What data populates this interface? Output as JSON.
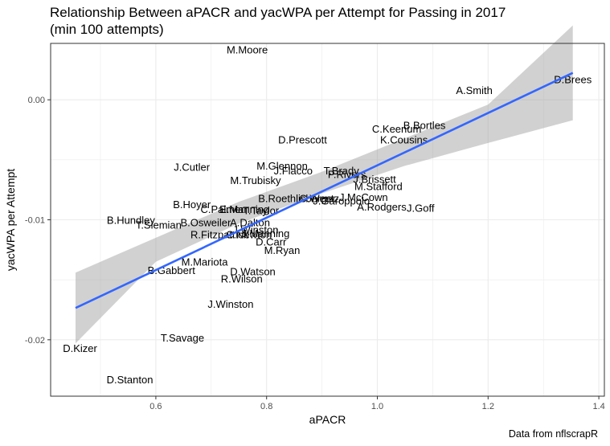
{
  "chart_data": {
    "type": "scatter",
    "title": "Relationship Between aPACR and yacWPA per Attempt for Passing in 2017\n(min 100 attempts)",
    "xlabel": "aPACR",
    "ylabel": "yacWPA per Attempt",
    "caption": "Data from nflscrapR",
    "xlim": [
      0.41,
      1.41
    ],
    "ylim": [
      -0.0247,
      0.0047
    ],
    "xticks": [
      0.6,
      0.8,
      1.0,
      1.2,
      1.4
    ],
    "xtick_labels": [
      "0.6",
      "0.8",
      "1.0",
      "1.2",
      "1.4"
    ],
    "yticks": [
      -0.02,
      -0.01,
      0.0
    ],
    "ytick_labels": [
      "-0.02",
      "-0.01",
      "0.00"
    ],
    "grid": true,
    "colors": {
      "fit_line": "#3366ff",
      "ribbon": "#999999",
      "grid": "#ebebeb",
      "panel_border": "#333333"
    },
    "fit_line": {
      "x": [
        0.455,
        1.353
      ],
      "y": [
        -0.01735,
        0.00224
      ]
    },
    "confidence_band": {
      "x": [
        0.455,
        0.6,
        0.75,
        0.9,
        1.05,
        1.2,
        1.353
      ],
      "lower": [
        -0.0203,
        -0.0135,
        -0.0103,
        -0.0078,
        -0.0055,
        -0.0036,
        -0.0017
      ],
      "upper": [
        -0.0144,
        -0.0115,
        -0.0085,
        -0.006,
        -0.0032,
        -0.0004,
        0.0062
      ]
    },
    "points": [
      {
        "label": "D.Brees",
        "x": 1.353,
        "y": 0.0016
      },
      {
        "label": "A.Smith",
        "x": 1.175,
        "y": 0.0007
      },
      {
        "label": "M.Moore",
        "x": 0.765,
        "y": 0.0041
      },
      {
        "label": "B.Bortles",
        "x": 1.085,
        "y": -0.0022
      },
      {
        "label": "C.Keenum",
        "x": 1.035,
        "y": -0.0025
      },
      {
        "label": "K.Cousins",
        "x": 1.048,
        "y": -0.0034
      },
      {
        "label": "D.Prescott",
        "x": 0.865,
        "y": -0.0034
      },
      {
        "label": "J.Cutler",
        "x": 0.665,
        "y": -0.0057
      },
      {
        "label": "M.Glennon",
        "x": 0.828,
        "y": -0.0056
      },
      {
        "label": "J.Flacco",
        "x": 0.848,
        "y": -0.006
      },
      {
        "label": "T.Brady",
        "x": 0.935,
        "y": -0.006
      },
      {
        "label": "P.Rivers",
        "x": 0.945,
        "y": -0.0063
      },
      {
        "label": "J.Brissett",
        "x": 0.995,
        "y": -0.0067
      },
      {
        "label": "M.Trubisky",
        "x": 0.78,
        "y": -0.0068
      },
      {
        "label": "M.Stafford",
        "x": 1.002,
        "y": -0.0073
      },
      {
        "label": "J.McCown",
        "x": 0.975,
        "y": -0.0082
      },
      {
        "label": "B.Roethlisberger",
        "x": 0.855,
        "y": -0.0083
      },
      {
        "label": "C.Wentz",
        "x": 0.895,
        "y": -0.0083
      },
      {
        "label": "J.Garoppolo",
        "x": 0.935,
        "y": -0.0085
      },
      {
        "label": "A.Rodgers",
        "x": 1.008,
        "y": -0.009
      },
      {
        "label": "J.Goff",
        "x": 1.078,
        "y": -0.0091
      },
      {
        "label": "B.Hoyer",
        "x": 0.665,
        "y": -0.0088
      },
      {
        "label": "C.Palmer",
        "x": 0.72,
        "y": -0.0092
      },
      {
        "label": "E.Manning",
        "x": 0.76,
        "y": -0.0092
      },
      {
        "label": "T.Taylor",
        "x": 0.79,
        "y": -0.0093
      },
      {
        "label": "B.Hundley",
        "x": 0.555,
        "y": -0.0101
      },
      {
        "label": "T.Siemian",
        "x": 0.605,
        "y": -0.0105
      },
      {
        "label": "B.Osweiler",
        "x": 0.69,
        "y": -0.0103
      },
      {
        "label": "A.Dalton",
        "x": 0.77,
        "y": -0.0103
      },
      {
        "label": "J.Winston",
        "x": 0.78,
        "y": -0.0109
      },
      {
        "label": "R.Fitzpatrick",
        "x": 0.715,
        "y": -0.0113
      },
      {
        "label": "C.Newton",
        "x": 0.768,
        "y": -0.0113
      },
      {
        "label": "J.Manning",
        "x": 0.798,
        "y": -0.0112
      },
      {
        "label": "D.Carr",
        "x": 0.808,
        "y": -0.0119
      },
      {
        "label": "M.Ryan",
        "x": 0.828,
        "y": -0.0126
      },
      {
        "label": "M.Mariota",
        "x": 0.688,
        "y": -0.0136
      },
      {
        "label": "B.Gabbert",
        "x": 0.628,
        "y": -0.0143
      },
      {
        "label": "D.Watson",
        "x": 0.775,
        "y": -0.0144
      },
      {
        "label": "R.Wilson",
        "x": 0.755,
        "y": -0.015
      },
      {
        "label": "J.Winston",
        "x": 0.735,
        "y": -0.0171
      },
      {
        "label": "T.Savage",
        "x": 0.648,
        "y": -0.0199
      },
      {
        "label": "D.Kizer",
        "x": 0.463,
        "y": -0.0208
      },
      {
        "label": "D.Stanton",
        "x": 0.553,
        "y": -0.0234
      }
    ]
  }
}
